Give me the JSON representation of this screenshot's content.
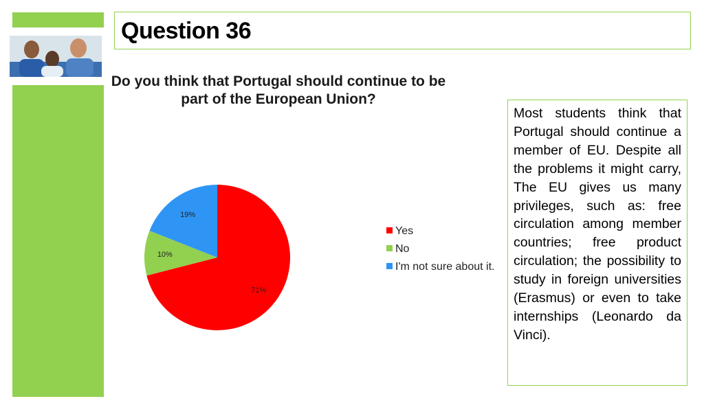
{
  "slide": {
    "title": "Question 36",
    "note": "Most students think that Portugal should continue a member of EU. Despite all the problems it might carry, The EU gives us many privileges, such as: free circulation among member countries; free product circulation; the possibility to study in foreign universities (Erasmus) or even to take internships (Leonardo da Vinci)."
  },
  "colors": {
    "accent_green": "#92d050",
    "yes": "#ff0000",
    "no": "#92d050",
    "not_sure": "#2e95f5"
  },
  "photo": {
    "icon": "people-photo-icon"
  },
  "chart_data": {
    "type": "pie",
    "title": "Do you think that Portugal should continue to be part of the European Union?",
    "categories": [
      "Yes",
      "No",
      "I'm not sure about it."
    ],
    "values": [
      71,
      10,
      19
    ],
    "labels": [
      "71%",
      "10%",
      "19%"
    ],
    "colors": [
      "#ff0000",
      "#92d050",
      "#2e95f5"
    ],
    "legend_position": "right"
  }
}
